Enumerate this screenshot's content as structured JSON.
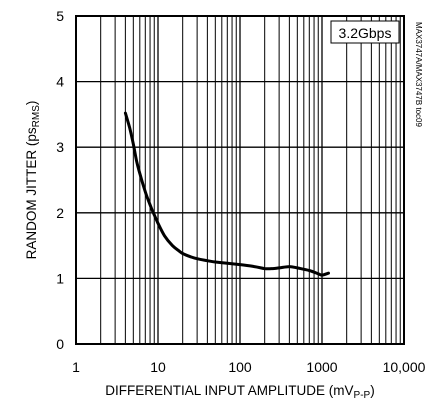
{
  "chart_data": {
    "type": "line",
    "x_scale": "log",
    "xlim": [
      1,
      10000
    ],
    "ylim": [
      0,
      5
    ],
    "grid": true,
    "x_ticks": [
      "1",
      "10",
      "100",
      "1000",
      "10,000"
    ],
    "y_ticks": [
      "0",
      "1",
      "2",
      "3",
      "4",
      "5"
    ],
    "xlabel": {
      "main": "DIFFERENTIAL INPUT AMPLITUDE (mV",
      "sub": "P-P",
      "tail": ")"
    },
    "ylabel": {
      "main": "RANDOM JITTER (ps",
      "sub": "RMS",
      "tail": ")"
    },
    "annotation": "3.2Gbps",
    "figure_code": "MAX3747A/MAX3747B toc09",
    "series": [
      {
        "x": [
          4,
          4.5,
          5,
          5.5,
          6,
          7,
          8,
          9,
          10,
          12,
          15,
          18,
          20,
          25,
          30,
          40,
          50,
          70,
          100,
          150,
          200,
          250,
          300,
          400,
          500,
          700,
          900,
          1000,
          1200
        ],
        "y": [
          3.52,
          3.3,
          3.05,
          2.78,
          2.6,
          2.32,
          2.12,
          1.97,
          1.84,
          1.65,
          1.5,
          1.42,
          1.38,
          1.33,
          1.3,
          1.27,
          1.25,
          1.23,
          1.21,
          1.18,
          1.15,
          1.15,
          1.16,
          1.18,
          1.16,
          1.12,
          1.07,
          1.05,
          1.08
        ]
      }
    ]
  }
}
